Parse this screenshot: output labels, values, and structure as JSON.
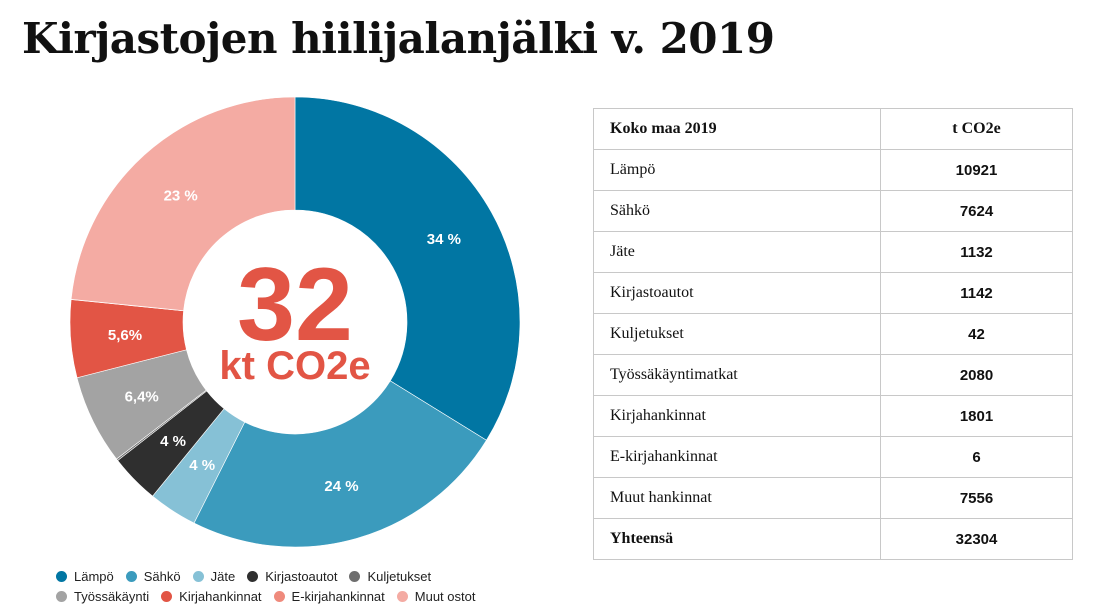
{
  "title": "Kirjastojen hiilijalanjälki v. 2019",
  "chart_data": {
    "type": "pie",
    "title": "Kirjastojen hiilijalanjälki v. 2019",
    "center_value": "32",
    "center_unit": "kt CO2e",
    "segments": [
      {
        "name": "Lämpö",
        "value": 10921,
        "label": "34 %",
        "color": "#0176a3"
      },
      {
        "name": "Sähkö",
        "value": 7624,
        "label": "24 %",
        "color": "#3b9bbd"
      },
      {
        "name": "Jäte",
        "value": 1132,
        "label": "4 %",
        "color": "#86c1d6"
      },
      {
        "name": "Kirjastoautot",
        "value": 1142,
        "label": "4 %",
        "color": "#2f2f2f"
      },
      {
        "name": "Kuljetukset",
        "value": 42,
        "label": "",
        "color": "#6e6e6e"
      },
      {
        "name": "Työssäkäynti",
        "value": 2080,
        "label": "6,4%",
        "color": "#a3a3a3"
      },
      {
        "name": "Kirjahankinnat",
        "value": 1801,
        "label": "5,6%",
        "color": "#e25545"
      },
      {
        "name": "E-kirjahankinnat",
        "value": 6,
        "label": "",
        "color": "#ef8a7c"
      },
      {
        "name": "Muut ostot",
        "value": 7556,
        "label": "23 %",
        "color": "#f4aba3"
      }
    ],
    "legend": {
      "rows": [
        [
          "Lämpö",
          "Sähkö",
          "Jäte",
          "Kirjastoautot",
          "Kuljetukset"
        ],
        [
          "Työssäkäynti",
          "Kirjahankinnat",
          "E-kirjahankinnat",
          "Muut ostot"
        ]
      ],
      "placement": "bottom"
    }
  },
  "table": {
    "header": [
      "Koko maa 2019",
      "t CO2e"
    ],
    "rows": [
      [
        "Lämpö",
        "10921"
      ],
      [
        "Sähkö",
        "7624"
      ],
      [
        "Jäte",
        "1132"
      ],
      [
        "Kirjastoautot",
        "1142"
      ],
      [
        "Kuljetukset",
        "42"
      ],
      [
        "Työssäkäyntimatkat",
        "2080"
      ],
      [
        "Kirjahankinnat",
        "1801"
      ],
      [
        "E-kirjahankinnat",
        "6"
      ],
      [
        "Muut hankinnat",
        "7556"
      ]
    ],
    "total": [
      "Yhteensä",
      "32304"
    ]
  },
  "colors": {
    "accent": "#e25545",
    "table_border": "#c8c8c8"
  }
}
